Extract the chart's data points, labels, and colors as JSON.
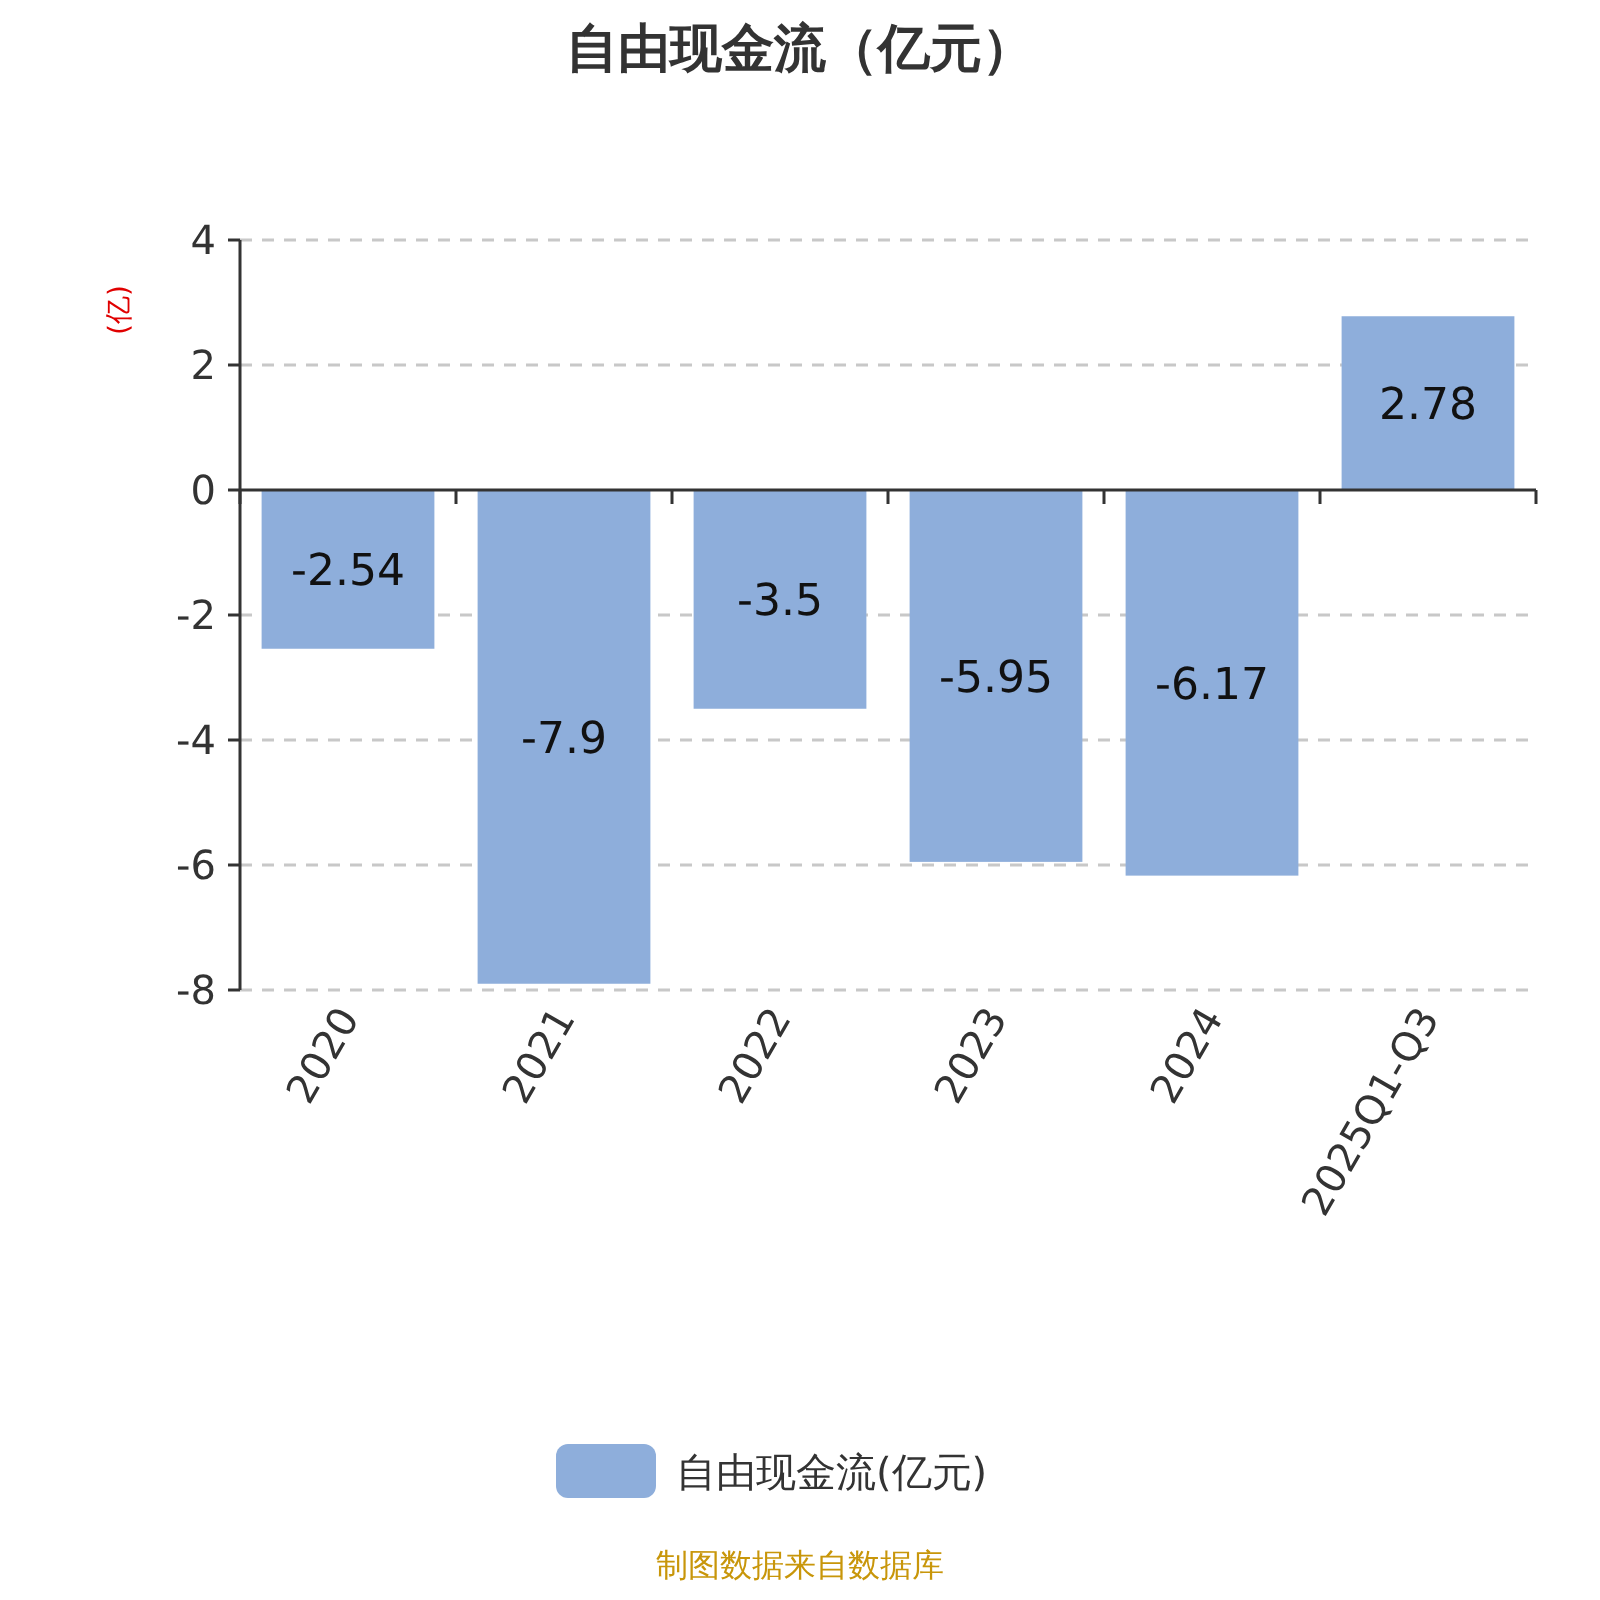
{
  "chart_data": {
    "type": "bar",
    "title": "自由现金流（亿元）",
    "ylabel": "(亿)",
    "categories": [
      "2020",
      "2021",
      "2022",
      "2023",
      "2024",
      "2025Q1-Q3"
    ],
    "series": [
      {
        "name": "自由现金流(亿元)",
        "color": "#8eaedb",
        "values": [
          -2.54,
          -7.9,
          -3.5,
          -5.95,
          -6.17,
          2.78
        ]
      }
    ],
    "ylim": [
      -8,
      4
    ],
    "yticks": [
      -8,
      -6,
      -4,
      -2,
      0,
      2,
      4
    ],
    "grid": "y",
    "legend": "bottom",
    "data_labels": true,
    "annotations": [
      "制图数据来自数据库"
    ]
  }
}
